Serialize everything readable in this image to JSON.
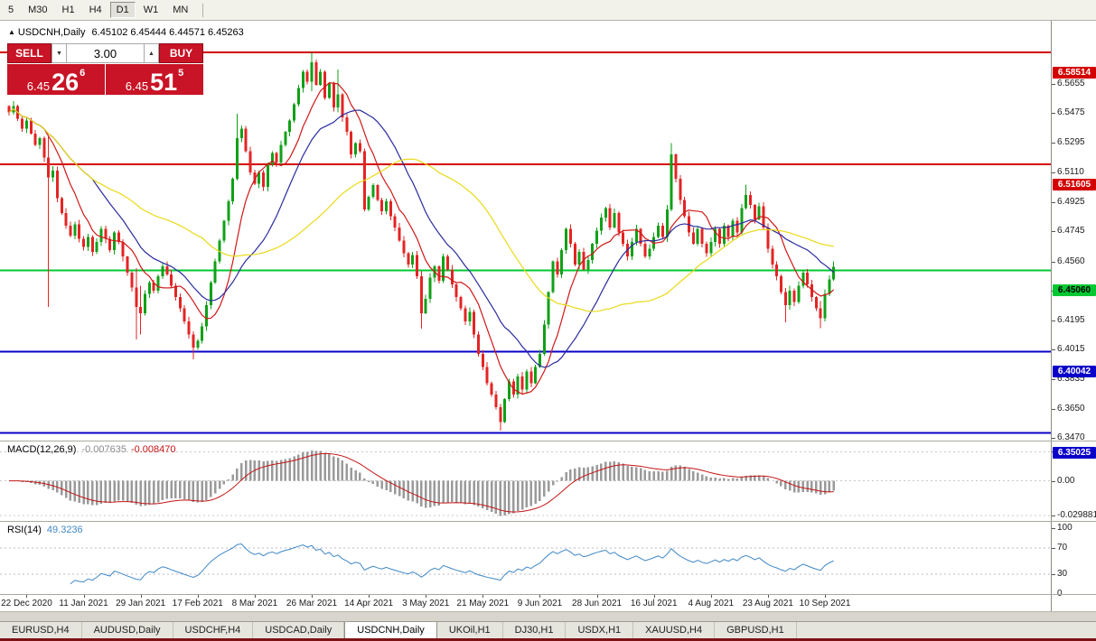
{
  "toolbar": {
    "timeframes": [
      {
        "label": "5",
        "selected": false
      },
      {
        "label": "M30",
        "selected": false
      },
      {
        "label": "H1",
        "selected": false
      },
      {
        "label": "H4",
        "selected": false
      },
      {
        "label": "D1",
        "selected": true
      },
      {
        "label": "W1",
        "selected": false
      },
      {
        "label": "MN",
        "selected": false
      }
    ]
  },
  "header": {
    "collapse_icon": "▲",
    "symbol": "USDCNH,Daily",
    "quotes": "6.45102 6.45444 6.44571 6.45263"
  },
  "trade_panel": {
    "sell_label": "SELL",
    "buy_label": "BUY",
    "volume": "3.00",
    "spin_down_icon": "▼",
    "spin_up_icon": "▲",
    "sell_price": {
      "prefix": "6.45",
      "big": "26",
      "sup": "6"
    },
    "buy_price": {
      "prefix": "6.45",
      "big": "51",
      "sup": "5"
    },
    "panel_color": "#c81426"
  },
  "tabs": [
    "EURUSD,H4",
    "AUDUSD,Daily",
    "USDCHF,H4",
    "USDCAD,Daily",
    "USDCNH,Daily",
    "UKOil,H1",
    "DJ30,H1",
    "USDX,H1",
    "XAUUSD,H4",
    "GBPUSD,H1"
  ],
  "selected_tab": "USDCNH,Daily",
  "chart_data": {
    "type": "candlestick",
    "title": "USDCNH,Daily",
    "ohlc_current": [
      6.45102,
      6.45444,
      6.44571,
      6.45263
    ],
    "y_range": [
      6.3455,
      6.6045
    ],
    "y_ticks": [
      "6.5655",
      "6.5475",
      "6.5295",
      "6.5110",
      "6.4925",
      "6.4745",
      "6.4560",
      "6.4380",
      "6.4195",
      "6.4015",
      "6.3835",
      "6.3650",
      "6.3470"
    ],
    "x_labels": [
      "22 Dec 2020",
      "11 Jan 2021",
      "29 Jan 2021",
      "17 Feb 2021",
      "8 Mar 2021",
      "26 Mar 2021",
      "14 Apr 2021",
      "3 May 2021",
      "21 May 2021",
      "9 Jun 2021",
      "28 Jun 2021",
      "16 Jul 2021",
      "4 Aug 2021",
      "23 Aug 2021",
      "10 Sep 2021"
    ],
    "x_label_first_index": 4,
    "x_label_step": 13,
    "closes": [
      6.548,
      6.552,
      6.544,
      6.538,
      6.543,
      6.535,
      6.528,
      6.532,
      6.52,
      6.508,
      6.512,
      6.495,
      6.486,
      6.478,
      6.472,
      6.479,
      6.47,
      6.465,
      6.471,
      6.462,
      6.468,
      6.476,
      6.47,
      6.463,
      6.474,
      6.468,
      6.459,
      6.449,
      6.44,
      6.428,
      6.424,
      6.436,
      6.443,
      6.438,
      6.447,
      6.453,
      6.448,
      6.441,
      6.434,
      6.427,
      6.419,
      6.411,
      6.403,
      6.407,
      6.416,
      6.429,
      6.443,
      6.456,
      6.469,
      6.481,
      6.493,
      6.507,
      6.532,
      6.538,
      6.524,
      6.511,
      6.504,
      6.511,
      6.502,
      6.516,
      6.523,
      6.517,
      6.528,
      6.536,
      6.543,
      6.553,
      6.563,
      6.573,
      6.567,
      6.579,
      6.565,
      6.573,
      6.557,
      6.566,
      6.551,
      6.559,
      6.545,
      6.536,
      6.522,
      6.529,
      6.524,
      6.488,
      6.496,
      6.503,
      6.494,
      6.487,
      6.493,
      6.484,
      6.477,
      6.469,
      6.461,
      6.454,
      6.46,
      6.447,
      6.424,
      6.433,
      6.446,
      6.453,
      6.444,
      6.459,
      6.451,
      6.442,
      6.434,
      6.427,
      6.419,
      6.425,
      6.411,
      6.399,
      6.391,
      6.381,
      6.374,
      6.366,
      6.357,
      6.371,
      6.382,
      6.374,
      6.385,
      6.377,
      6.388,
      6.381,
      6.391,
      6.399,
      6.417,
      6.437,
      6.456,
      6.448,
      6.463,
      6.476,
      6.467,
      6.454,
      6.462,
      6.451,
      6.457,
      6.467,
      6.475,
      6.483,
      6.489,
      6.477,
      6.486,
      6.474,
      6.467,
      6.459,
      6.468,
      6.476,
      6.467,
      6.459,
      6.464,
      6.471,
      6.478,
      6.471,
      6.488,
      6.522,
      6.507,
      6.494,
      6.484,
      6.474,
      6.467,
      6.476,
      6.467,
      6.461,
      6.468,
      6.476,
      6.467,
      6.478,
      6.471,
      6.481,
      6.474,
      6.489,
      6.497,
      6.491,
      6.482,
      6.49,
      6.477,
      6.464,
      6.454,
      6.447,
      6.437,
      6.429,
      6.438,
      6.431,
      6.441,
      6.449,
      6.442,
      6.434,
      6.427,
      6.421,
      6.436,
      6.445,
      6.4526
    ],
    "wick_overrides": {
      "9": [
        6.533,
        6.428
      ],
      "29": [
        6.452,
        6.408
      ],
      "30": [
        6.441,
        6.411
      ],
      "42": [
        6.413,
        6.3955
      ],
      "52": [
        6.547,
        6.506
      ],
      "69": [
        6.5851,
        6.561
      ],
      "75": [
        6.5745,
        6.548
      ],
      "94": [
        6.45,
        6.4145
      ],
      "112": [
        6.368,
        6.3515
      ],
      "151": [
        6.529,
        6.487
      ],
      "168": [
        6.5035,
        6.488
      ],
      "177": [
        6.4395,
        6.4185
      ],
      "185": [
        6.4315,
        6.4148
      ],
      "188": [
        6.4561,
        6.4442
      ]
    },
    "hlines": [
      {
        "price": 6.58514,
        "label": "6.58514",
        "color": "#d40000",
        "text": "#ffffff"
      },
      {
        "price": 6.51605,
        "label": "6.51605",
        "color": "#d40000",
        "text": "#ffffff"
      },
      {
        "price": 6.4506,
        "label": "6.45060",
        "color": "#00c832",
        "text": "#000000"
      },
      {
        "price": 6.40042,
        "label": "6.40042",
        "color": "#0a00c8",
        "text": "#ffffff"
      },
      {
        "price": 6.35025,
        "label": "6.35025",
        "color": "#0a00c8",
        "text": "#ffffff"
      }
    ],
    "ma_lines": [
      {
        "period": 9,
        "color": "#d01818"
      },
      {
        "period": 20,
        "color": "#2b2b9e"
      },
      {
        "period": 45,
        "color": "#e9da16"
      }
    ],
    "colors": {
      "up": "#10a017",
      "down": "#e32424",
      "macd_histogram": "#9a9a9a",
      "macd_signal": "#c41414",
      "rsi_line": "#3f87c6"
    },
    "macd": {
      "label": "MACD(12,26,9)",
      "value1_text": "-0.007635",
      "value2_text": "-0.008470",
      "fast": 12,
      "slow": 26,
      "signal": 9,
      "range": [
        -0.0345,
        0.034
      ],
      "ticks": [
        {
          "value": 0.025108,
          "label": "0.025108"
        },
        {
          "value": 0,
          "label": "0.00"
        },
        {
          "value": -0.029881,
          "label": "-0.029881"
        }
      ]
    },
    "rsi": {
      "label": "RSI(14)",
      "value_text": "49.3236",
      "period": 14,
      "range": [
        0,
        100
      ],
      "levels": [
        70,
        30
      ],
      "ticks": [
        {
          "value": 100,
          "label": "100"
        },
        {
          "value": 70,
          "label": "70"
        },
        {
          "value": 30,
          "label": "30"
        },
        {
          "value": 0,
          "label": "0"
        }
      ]
    }
  }
}
